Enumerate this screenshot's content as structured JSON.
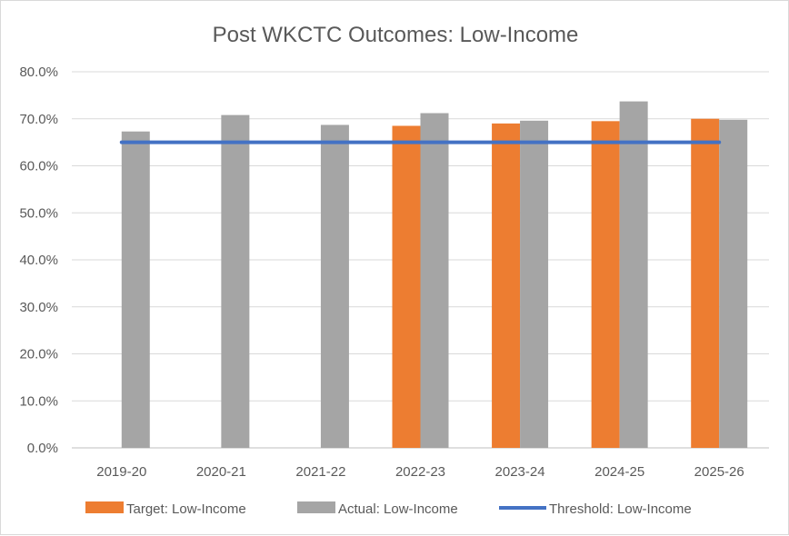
{
  "chart_data": {
    "type": "bar",
    "title": "Post WKCTC Outcomes: Low-Income",
    "categories": [
      "2019-20",
      "2020-21",
      "2021-22",
      "2022-23",
      "2023-24",
      "2024-25",
      "2025-26"
    ],
    "y_ticks": [
      "0.0%",
      "10.0%",
      "20.0%",
      "30.0%",
      "40.0%",
      "50.0%",
      "60.0%",
      "70.0%",
      "80.0%"
    ],
    "ylim": [
      0,
      80
    ],
    "grid": true,
    "legend_position": "bottom",
    "series": [
      {
        "name": "Target: Low-Income",
        "kind": "bar",
        "color": "#ed7d31",
        "values": [
          null,
          null,
          null,
          68.5,
          69.0,
          69.5,
          70.0
        ]
      },
      {
        "name": "Actual: Low-Income",
        "kind": "bar",
        "color": "#a5a5a5",
        "values": [
          67.3,
          70.8,
          68.7,
          71.2,
          69.6,
          73.7,
          69.8
        ]
      },
      {
        "name": "Threshold: Low-Income",
        "kind": "line",
        "color": "#4472c4",
        "values": [
          65.0,
          65.0,
          65.0,
          65.0,
          65.0,
          65.0,
          65.0
        ]
      }
    ]
  }
}
